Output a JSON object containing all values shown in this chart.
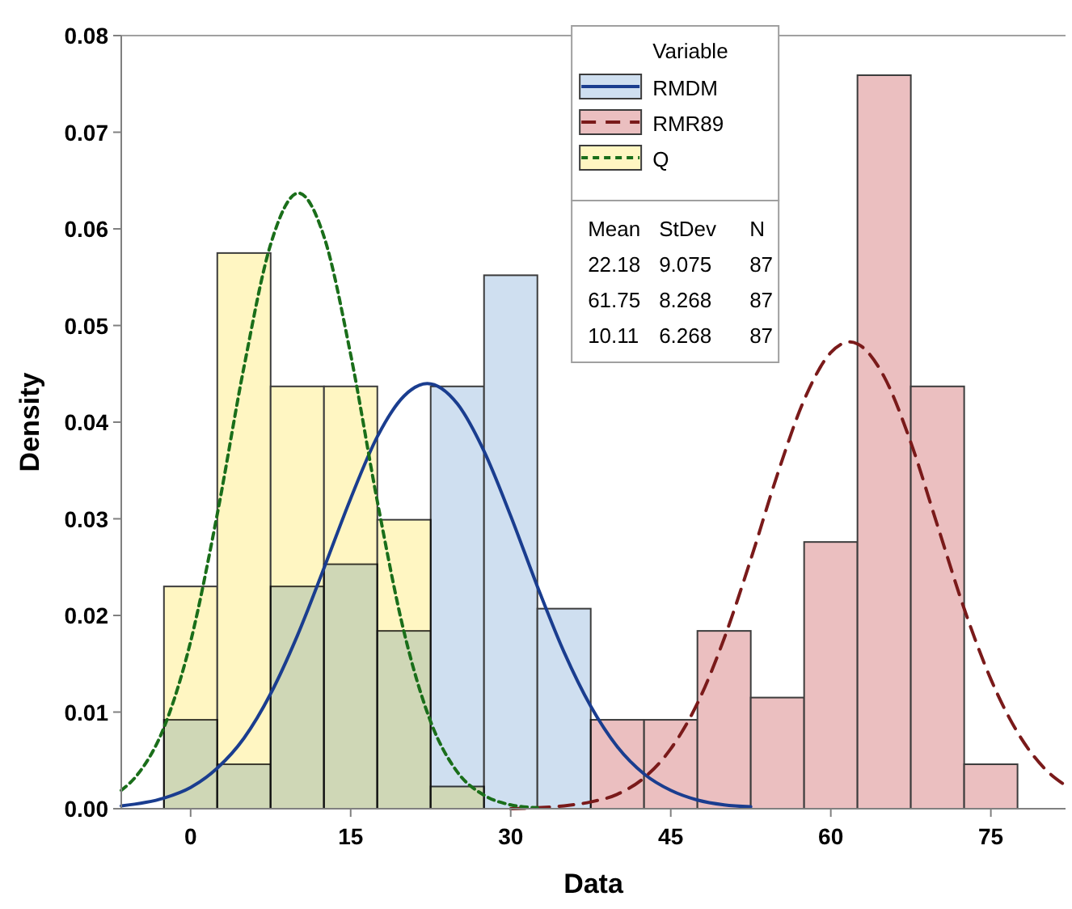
{
  "chart_data": {
    "type": "histogram",
    "xlabel": "Data",
    "ylabel": "Density",
    "legend_title": "Variable",
    "legend": "top",
    "bins": [
      -2.5,
      2.5,
      7.5,
      12.5,
      17.5,
      22.5,
      27.5,
      32.5,
      37.5,
      42.5,
      47.5,
      52.5,
      57.5,
      62.5,
      67.5,
      72.5,
      77.5
    ],
    "xlim": [
      -6.5,
      82
    ],
    "xticks": [
      0,
      15,
      30,
      45,
      60,
      75
    ],
    "ylim": [
      0,
      0.08
    ],
    "yticks": [
      {
        "value": 0,
        "label": "0.00"
      },
      {
        "value": 0.01,
        "label": "0.01"
      },
      {
        "value": 0.02,
        "label": "0.02"
      },
      {
        "value": 0.03,
        "label": "0.03"
      },
      {
        "value": 0.04,
        "label": "0.04"
      },
      {
        "value": 0.05,
        "label": "0.05"
      },
      {
        "value": 0.06,
        "label": "0.06"
      },
      {
        "value": 0.07,
        "label": "0.07"
      },
      {
        "value": 0.08,
        "label": "0.08"
      }
    ],
    "series": [
      {
        "name": "RMDM",
        "color": "#cfdff0",
        "values": [
          0.0092,
          0.0046,
          0.023,
          0.0253,
          0.0184,
          0.0437,
          0.0552,
          0.0207,
          0,
          0,
          0,
          0,
          0,
          0,
          0,
          0
        ]
      },
      {
        "name": "RMR89",
        "color": "#ebbfc0",
        "values": [
          0,
          0,
          0,
          0,
          0,
          0,
          0,
          0,
          0.0092,
          0.0092,
          0.0184,
          0.0115,
          0.0276,
          0.0759,
          0.0437,
          0.0046
        ]
      },
      {
        "name": "Q",
        "color": "#fff6c2",
        "values": [
          0.023,
          0.0575,
          0.0437,
          0.0437,
          0.0299,
          0.0023,
          0,
          0,
          0,
          0,
          0,
          0,
          0,
          0,
          0,
          0
        ]
      },
      {
        "type": "line",
        "color": "#1a3d8f",
        "line_style": "solid",
        "x": [
          -6.5,
          -2.5,
          0,
          2.5,
          5,
          7.5,
          10,
          12.5,
          15,
          17.5,
          20,
          22.18,
          25,
          27.5,
          30,
          32.5,
          35,
          37.5,
          40,
          42.5,
          45,
          47.5,
          50,
          52.5
        ],
        "values": [
          0.0003,
          0.0011,
          0.0022,
          0.0042,
          0.0073,
          0.0119,
          0.0179,
          0.0249,
          0.0321,
          0.0385,
          0.0427,
          0.044,
          0.0419,
          0.037,
          0.0303,
          0.023,
          0.0162,
          0.0106,
          0.0064,
          0.0036,
          0.0019,
          0.0009,
          0.0004,
          0.0002
        ]
      },
      {
        "type": "line",
        "color": "#7a1a1a",
        "line_style": "dashed",
        "x": [
          30,
          32.5,
          35,
          37.5,
          40,
          42.5,
          45,
          47.5,
          50,
          52.5,
          55,
          57.5,
          60,
          61.75,
          62.5,
          65,
          67.5,
          70,
          72.5,
          75,
          77.5,
          80,
          82
        ],
        "values": [
          0,
          0.0001,
          0.0003,
          0.0007,
          0.0015,
          0.0032,
          0.0062,
          0.0109,
          0.0176,
          0.0258,
          0.0346,
          0.0423,
          0.0472,
          0.0483,
          0.0481,
          0.0447,
          0.0379,
          0.0293,
          0.0207,
          0.0134,
          0.0079,
          0.0042,
          0.0024
        ]
      },
      {
        "type": "line",
        "color": "#1a6e1a",
        "line_style": "dotted",
        "x": [
          -6.5,
          -5,
          -2.5,
          0,
          2.5,
          5,
          7.5,
          10.11,
          12.5,
          15,
          17.5,
          20,
          22.5,
          25,
          27.5,
          30,
          32.5
        ],
        "values": [
          0.0019,
          0.0035,
          0.0084,
          0.0173,
          0.0305,
          0.0457,
          0.0584,
          0.0637,
          0.0592,
          0.047,
          0.0318,
          0.0183,
          0.009,
          0.0038,
          0.0014,
          0.0004,
          0.0001
        ]
      }
    ],
    "annotations": [
      "Mean StDev N",
      "22.18 9.075 87",
      "61.75 8.268 87",
      "10.11 6.268 87"
    ]
  }
}
